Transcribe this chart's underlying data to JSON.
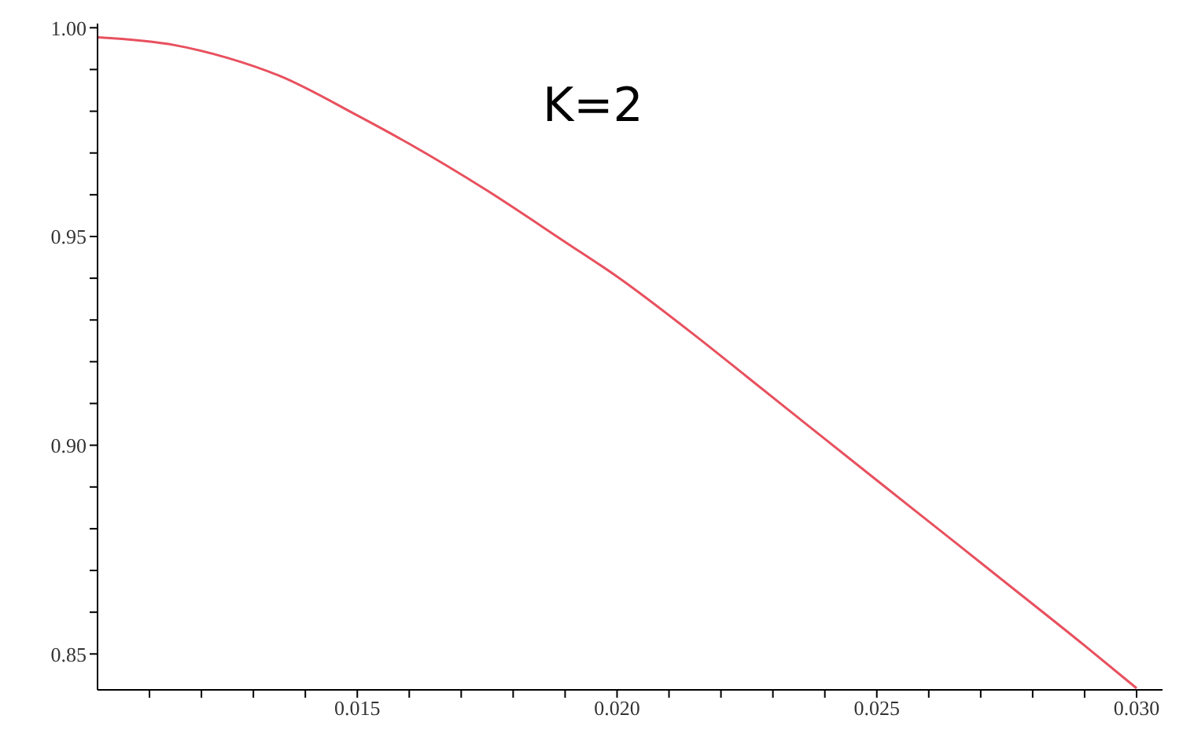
{
  "chart_data": {
    "type": "line",
    "annotations": [
      "K=2"
    ],
    "x": [
      0.01,
      0.0115,
      0.0125,
      0.0135,
      0.015,
      0.016,
      0.0175,
      0.019,
      0.02,
      0.0215,
      0.0225,
      0.024,
      0.025,
      0.0265,
      0.0275,
      0.029,
      0.03
    ],
    "series": [
      {
        "color": "#e8505e",
        "values": [
          0.9977,
          0.9958,
          0.9928,
          0.9885,
          0.979,
          0.9722,
          0.961,
          0.9487,
          0.9404,
          0.9263,
          0.9164,
          0.9015,
          0.8916,
          0.8768,
          0.8669,
          0.852,
          0.8418
        ]
      }
    ],
    "xlim": [
      0.01,
      0.0305
    ],
    "ylim": [
      0.8414,
      1.001
    ],
    "xticks": [
      {
        "value": 0.011,
        "label": null
      },
      {
        "value": 0.012,
        "label": null
      },
      {
        "value": 0.013,
        "label": null
      },
      {
        "value": 0.014,
        "label": null
      },
      {
        "value": 0.015,
        "label": "0.015"
      },
      {
        "value": 0.016,
        "label": null
      },
      {
        "value": 0.017,
        "label": null
      },
      {
        "value": 0.018,
        "label": null
      },
      {
        "value": 0.019,
        "label": null
      },
      {
        "value": 0.02,
        "label": "0.020"
      },
      {
        "value": 0.021,
        "label": null
      },
      {
        "value": 0.022,
        "label": null
      },
      {
        "value": 0.023,
        "label": null
      },
      {
        "value": 0.024,
        "label": null
      },
      {
        "value": 0.025,
        "label": "0.025"
      },
      {
        "value": 0.026,
        "label": null
      },
      {
        "value": 0.027,
        "label": null
      },
      {
        "value": 0.028,
        "label": null
      },
      {
        "value": 0.029,
        "label": null
      },
      {
        "value": 0.03,
        "label": "0.030"
      }
    ],
    "yticks": [
      {
        "value": 0.85,
        "label": "0.85"
      },
      {
        "value": 0.86,
        "label": null
      },
      {
        "value": 0.87,
        "label": null
      },
      {
        "value": 0.88,
        "label": null
      },
      {
        "value": 0.89,
        "label": null
      },
      {
        "value": 0.9,
        "label": "0.90"
      },
      {
        "value": 0.91,
        "label": null
      },
      {
        "value": 0.92,
        "label": null
      },
      {
        "value": 0.93,
        "label": null
      },
      {
        "value": 0.94,
        "label": null
      },
      {
        "value": 0.95,
        "label": "0.95"
      },
      {
        "value": 0.96,
        "label": null
      },
      {
        "value": 0.97,
        "label": null
      },
      {
        "value": 0.98,
        "label": null
      },
      {
        "value": 0.99,
        "label": null
      },
      {
        "value": 1,
        "label": "1.00"
      }
    ],
    "grid": false,
    "legend": false,
    "marker": "none",
    "line_style": "solid"
  }
}
